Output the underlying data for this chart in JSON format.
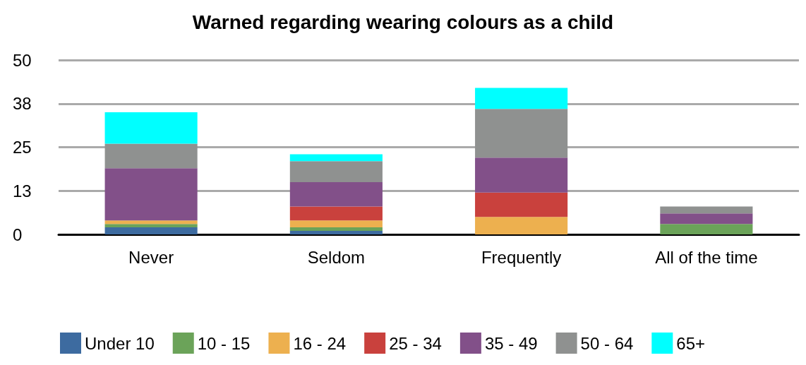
{
  "chart_data": {
    "type": "bar",
    "title": "Warned regarding wearing colours as a child",
    "stacked": true,
    "categories": [
      "Never",
      "Seldom",
      "Frequently",
      "All of the time"
    ],
    "series": [
      {
        "name": "Under 10",
        "color": "#3d6ba0",
        "values": [
          2,
          1,
          0,
          0
        ]
      },
      {
        "name": "10 - 15",
        "color": "#6ba359",
        "values": [
          1,
          1,
          0,
          3
        ]
      },
      {
        "name": "16 - 24",
        "color": "#edb04f",
        "values": [
          1,
          2,
          5,
          0
        ]
      },
      {
        "name": "25 - 34",
        "color": "#c9413d",
        "values": [
          0,
          4,
          7,
          0
        ]
      },
      {
        "name": "35 - 49",
        "color": "#825089",
        "values": [
          15,
          7,
          10,
          3
        ]
      },
      {
        "name": "50 - 64",
        "color": "#8f9190",
        "values": [
          7,
          6,
          14,
          2
        ]
      },
      {
        "name": "65+",
        "color": "#00ffff",
        "values": [
          9,
          2,
          6,
          0
        ]
      }
    ],
    "ylim": [
      0,
      50
    ],
    "yticks": [
      0,
      {
        "value": 12.5,
        "label": "13"
      },
      25,
      {
        "value": 37.5,
        "label": "38"
      },
      50
    ],
    "grid": "y",
    "legend": "bottom left"
  }
}
